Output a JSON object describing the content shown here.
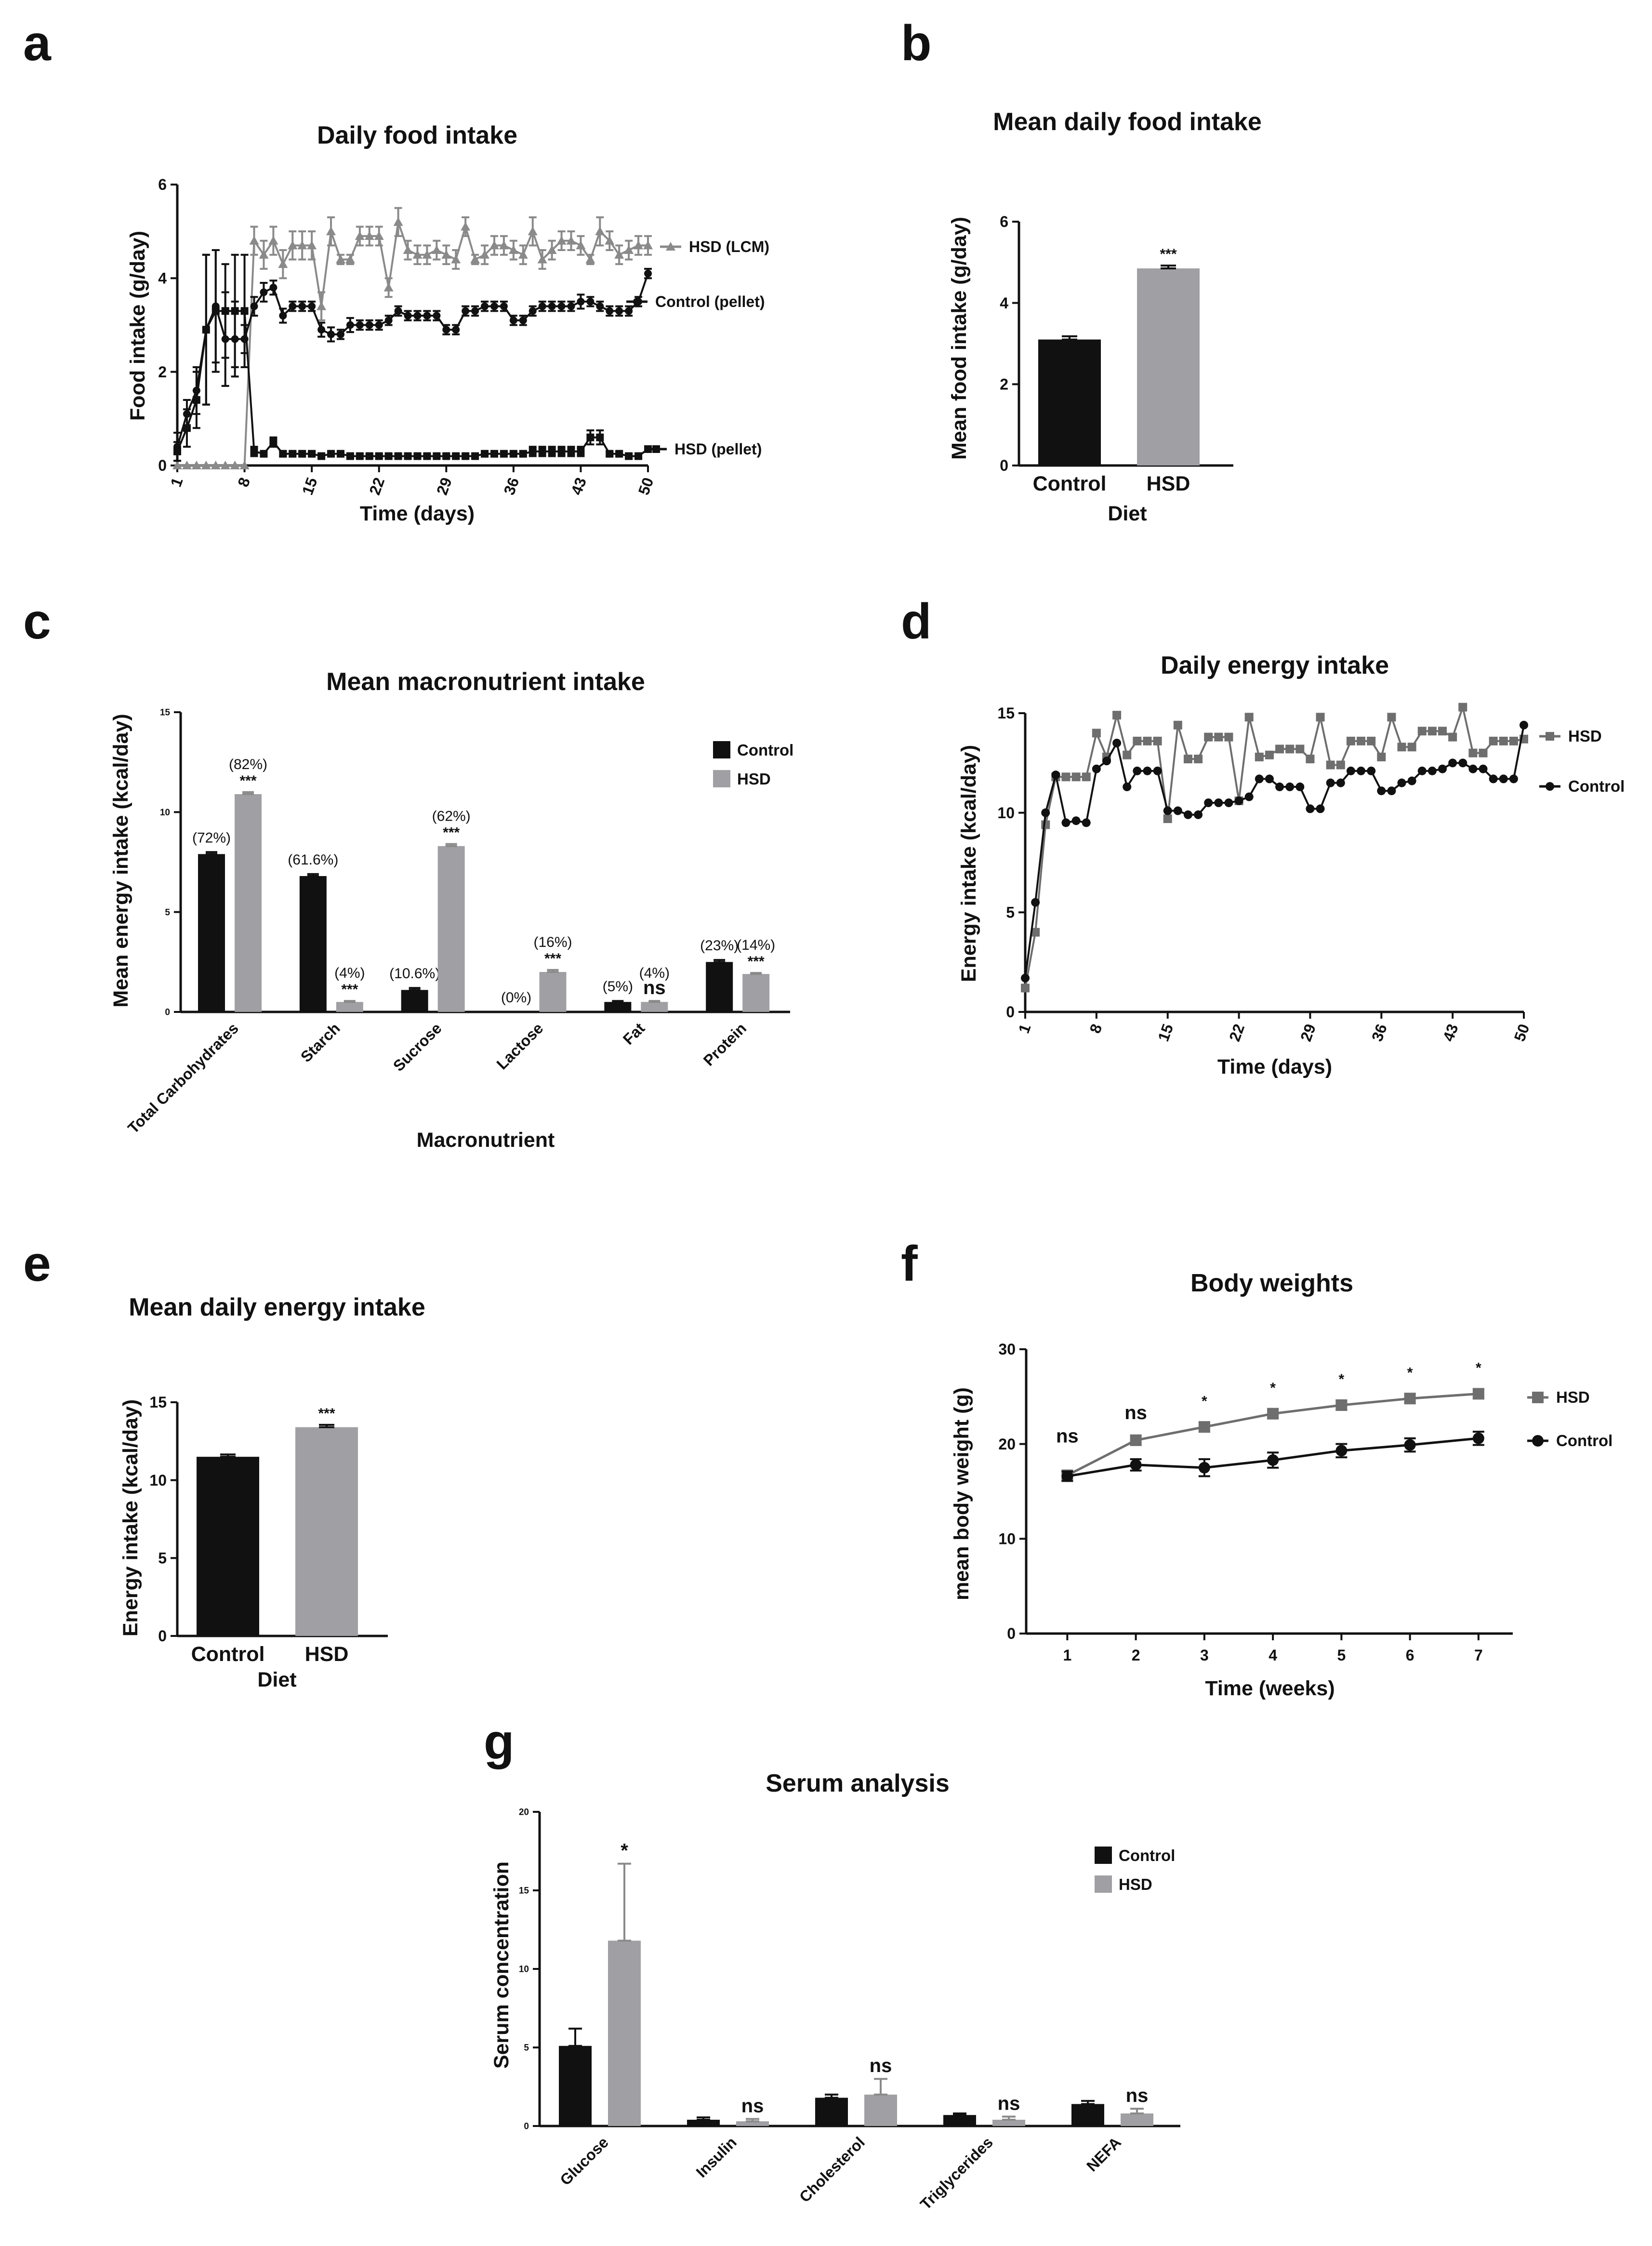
{
  "figure": {
    "panel_letters": [
      "a",
      "b",
      "c",
      "d",
      "e",
      "f",
      "g"
    ]
  },
  "colors": {
    "control": "#111111",
    "hsd_bar": "#a0a0a4",
    "hsd_line": "#6e6e6e",
    "hsd_lcm": "#8a8a8a"
  },
  "chart_data": [
    {
      "id": "a",
      "type": "line",
      "title": "Daily food intake",
      "xlabel": "Time (days)",
      "ylabel": "Food intake (g/day)",
      "xlim": [
        1,
        50
      ],
      "ylim": [
        0,
        6
      ],
      "xticks": [
        1,
        8,
        15,
        22,
        29,
        36,
        43,
        50
      ],
      "yticks": [
        0,
        2,
        4,
        6
      ],
      "x": [
        1,
        2,
        3,
        4,
        5,
        6,
        7,
        8,
        9,
        10,
        11,
        12,
        13,
        14,
        15,
        16,
        17,
        18,
        19,
        20,
        21,
        22,
        23,
        24,
        25,
        26,
        27,
        28,
        29,
        30,
        31,
        32,
        33,
        34,
        35,
        36,
        37,
        38,
        39,
        40,
        41,
        42,
        43,
        44,
        45,
        46,
        47,
        48,
        49,
        50
      ],
      "series": [
        {
          "name": "HSD (LCM)",
          "label": "HSD (LCM)",
          "marker": "triangle",
          "color": "#8a8a8a",
          "values": [
            0,
            0,
            0,
            0,
            0,
            0,
            0,
            0,
            4.8,
            4.5,
            4.8,
            4.3,
            4.7,
            4.7,
            4.7,
            3.4,
            5.0,
            4.4,
            4.4,
            4.9,
            4.9,
            4.9,
            3.8,
            5.2,
            4.6,
            4.5,
            4.5,
            4.6,
            4.5,
            4.4,
            5.1,
            4.4,
            4.5,
            4.7,
            4.7,
            4.6,
            4.5,
            5.0,
            4.4,
            4.6,
            4.8,
            4.8,
            4.7,
            4.4,
            5.0,
            4.8,
            4.5,
            4.6,
            4.7,
            4.7
          ],
          "err": [
            0,
            0,
            0,
            0,
            0,
            0,
            0,
            0,
            0.3,
            0.3,
            0.3,
            0.3,
            0.3,
            0.3,
            0.3,
            0.3,
            0.3,
            0.1,
            0.1,
            0.2,
            0.2,
            0.2,
            0.2,
            0.3,
            0.2,
            0.2,
            0.2,
            0.2,
            0.2,
            0.2,
            0.2,
            0.1,
            0.2,
            0.2,
            0.2,
            0.2,
            0.2,
            0.3,
            0.2,
            0.2,
            0.2,
            0.2,
            0.2,
            0.1,
            0.3,
            0.2,
            0.2,
            0.2,
            0.2,
            0.2
          ]
        },
        {
          "name": "Control (pellet)",
          "label": "Control (pellet)",
          "marker": "circle",
          "color": "#111111",
          "values": [
            0.4,
            1.1,
            1.6,
            2.9,
            3.4,
            2.7,
            2.7,
            2.7,
            3.4,
            3.7,
            3.8,
            3.2,
            3.4,
            3.4,
            3.4,
            2.9,
            2.8,
            2.8,
            3.0,
            3.0,
            3.0,
            3.0,
            3.1,
            3.3,
            3.2,
            3.2,
            3.2,
            3.2,
            2.9,
            2.9,
            3.3,
            3.3,
            3.4,
            3.4,
            3.4,
            3.1,
            3.1,
            3.3,
            3.4,
            3.4,
            3.4,
            3.4,
            3.5,
            3.5,
            3.4,
            3.3,
            3.3,
            3.3,
            3.5,
            4.1
          ],
          "err": [
            0.3,
            0.3,
            0.5,
            1.6,
            1.2,
            1.0,
            0.8,
            0.3,
            0.2,
            0.2,
            0.15,
            0.15,
            0.1,
            0.1,
            0.1,
            0.15,
            0.15,
            0.1,
            0.15,
            0.1,
            0.1,
            0.1,
            0.1,
            0.1,
            0.1,
            0.1,
            0.1,
            0.1,
            0.1,
            0.1,
            0.1,
            0.1,
            0.1,
            0.1,
            0.1,
            0.1,
            0.1,
            0.1,
            0.1,
            0.1,
            0.1,
            0.1,
            0.15,
            0.1,
            0.1,
            0.1,
            0.1,
            0.1,
            0.1,
            0.1
          ]
        },
        {
          "name": "HSD (pellet)",
          "label": "HSD (pellet)",
          "marker": "square",
          "color": "#111111",
          "values": [
            0.3,
            0.8,
            1.4,
            2.9,
            3.3,
            3.3,
            3.3,
            3.3,
            0.3,
            0.25,
            0.5,
            0.25,
            0.25,
            0.25,
            0.25,
            0.2,
            0.25,
            0.25,
            0.2,
            0.2,
            0.2,
            0.2,
            0.2,
            0.2,
            0.2,
            0.2,
            0.2,
            0.2,
            0.2,
            0.2,
            0.2,
            0.2,
            0.25,
            0.25,
            0.25,
            0.25,
            0.25,
            0.3,
            0.3,
            0.3,
            0.3,
            0.3,
            0.3,
            0.6,
            0.6,
            0.25,
            0.25,
            0.2,
            0.2,
            0.35
          ],
          "err": [
            0.2,
            0.4,
            0.6,
            1.6,
            1.3,
            1.0,
            1.2,
            1.2,
            0.1,
            0.05,
            0.1,
            0.05,
            0.05,
            0.05,
            0.05,
            0.05,
            0.05,
            0.05,
            0.05,
            0.05,
            0.05,
            0.05,
            0.05,
            0.05,
            0.05,
            0.05,
            0.05,
            0.05,
            0.05,
            0.05,
            0.05,
            0.05,
            0.05,
            0.05,
            0.05,
            0.05,
            0.05,
            0.1,
            0.1,
            0.1,
            0.1,
            0.1,
            0.1,
            0.15,
            0.15,
            0.05,
            0.05,
            0.05,
            0.05,
            0.05
          ]
        }
      ]
    },
    {
      "id": "b",
      "type": "bar",
      "title": "Mean daily food intake",
      "xlabel": "Diet",
      "ylabel": "Mean food intake (g/day)",
      "categories": [
        "Control",
        "HSD"
      ],
      "values": [
        3.1,
        4.85
      ],
      "err": [
        0.08,
        0.07
      ],
      "colors": [
        "#111111",
        "#a0a0a4"
      ],
      "significance": [
        "",
        "***"
      ],
      "ylim": [
        0,
        6
      ],
      "yticks": [
        0,
        2,
        4,
        6
      ]
    },
    {
      "id": "c",
      "type": "bar",
      "title": "Mean macronutrient intake",
      "xlabel": "Macronutrient",
      "ylabel": "Mean energy intake (kcal/day)",
      "categories": [
        "Total Carbohydrates",
        "Starch",
        "Sucrose",
        "Lactose",
        "Fat",
        "Protein"
      ],
      "series": [
        {
          "name": "Control",
          "color": "#111111",
          "values": [
            7.9,
            6.8,
            1.1,
            0.0,
            0.5,
            2.5
          ],
          "err": [
            0.1,
            0.1,
            0.1,
            0.0,
            0.05,
            0.1
          ],
          "pct": [
            "(72%)",
            "(61.6%)",
            "(10.6%)",
            "(0%)",
            "(5%)",
            "(23%)"
          ]
        },
        {
          "name": "HSD",
          "color": "#a0a0a4",
          "values": [
            10.9,
            0.5,
            8.3,
            2.0,
            0.5,
            1.9
          ],
          "err": [
            0.1,
            0.05,
            0.1,
            0.1,
            0.05,
            0.05
          ],
          "pct": [
            "(82%)",
            "(4%)",
            "(62%)",
            "(16%)",
            "(4%)",
            "(14%)"
          ]
        }
      ],
      "significance": [
        "***",
        "***",
        "***",
        "***",
        "ns",
        "***"
      ],
      "ylim": [
        0,
        15
      ],
      "yticks": [
        0,
        5,
        10,
        15
      ],
      "legend": "top-right"
    },
    {
      "id": "d",
      "type": "line",
      "title": "Daily energy intake",
      "xlabel": "Time (days)",
      "ylabel": "Energy intake (kcal/day)",
      "xlim": [
        1,
        50
      ],
      "ylim": [
        0,
        15
      ],
      "xticks": [
        1,
        8,
        15,
        22,
        29,
        36,
        43,
        50
      ],
      "yticks": [
        0,
        5,
        10,
        15
      ],
      "x": [
        1,
        2,
        3,
        4,
        5,
        6,
        7,
        8,
        9,
        10,
        11,
        12,
        13,
        14,
        15,
        16,
        17,
        18,
        19,
        20,
        21,
        22,
        23,
        24,
        25,
        26,
        27,
        28,
        29,
        30,
        31,
        32,
        33,
        34,
        35,
        36,
        37,
        38,
        39,
        40,
        41,
        42,
        43,
        44,
        45,
        46,
        47,
        48,
        49,
        50
      ],
      "series": [
        {
          "name": "HSD",
          "label": "HSD",
          "marker": "square",
          "color": "#6e6e6e",
          "values": [
            1.2,
            4.0,
            9.4,
            11.8,
            11.8,
            11.8,
            11.8,
            14.0,
            12.8,
            14.9,
            12.9,
            13.6,
            13.6,
            13.6,
            9.7,
            14.4,
            12.7,
            12.7,
            13.8,
            13.8,
            13.8,
            10.6,
            14.8,
            12.8,
            12.9,
            13.2,
            13.2,
            13.2,
            12.7,
            14.8,
            12.4,
            12.4,
            13.6,
            13.6,
            13.6,
            12.8,
            14.8,
            13.3,
            13.3,
            14.1,
            14.1,
            14.1,
            13.8,
            15.3,
            13.0,
            13.0,
            13.6,
            13.6,
            13.6,
            13.7
          ]
        },
        {
          "name": "Control",
          "label": "Control",
          "marker": "circle",
          "color": "#111111",
          "values": [
            1.7,
            5.5,
            10.0,
            11.9,
            9.5,
            9.6,
            9.5,
            12.2,
            12.6,
            13.5,
            11.3,
            12.1,
            12.1,
            12.1,
            10.1,
            10.1,
            9.9,
            9.9,
            10.5,
            10.5,
            10.5,
            10.6,
            10.8,
            11.7,
            11.7,
            11.3,
            11.3,
            11.3,
            10.2,
            10.2,
            11.5,
            11.5,
            12.1,
            12.1,
            12.1,
            11.1,
            11.1,
            11.5,
            11.6,
            12.1,
            12.1,
            12.2,
            12.5,
            12.5,
            12.2,
            12.2,
            11.7,
            11.7,
            11.7,
            14.4
          ]
        }
      ]
    },
    {
      "id": "e",
      "type": "bar",
      "title": "Mean daily energy intake",
      "xlabel": "Diet",
      "ylabel": "Energy intake (kcal/day)",
      "categories": [
        "Control",
        "HSD"
      ],
      "values": [
        11.5,
        13.4
      ],
      "err": [
        0.15,
        0.15
      ],
      "colors": [
        "#111111",
        "#a0a0a4"
      ],
      "significance": [
        "",
        "***"
      ],
      "ylim": [
        0,
        15
      ],
      "yticks": [
        0,
        5,
        10,
        15
      ]
    },
    {
      "id": "f",
      "type": "line",
      "title": "Body weights",
      "xlabel": "Time (weeks)",
      "ylabel": "mean body weight (g)",
      "x": [
        1,
        2,
        3,
        4,
        5,
        6,
        7
      ],
      "xticks": [
        1,
        2,
        3,
        4,
        5,
        6,
        7
      ],
      "xlim": [
        0.4,
        7.5
      ],
      "ylim": [
        0,
        30
      ],
      "yticks": [
        0,
        10,
        20,
        30
      ],
      "series": [
        {
          "name": "HSD",
          "label": "HSD",
          "marker": "square",
          "color": "#6e6e6e",
          "values": [
            16.7,
            20.4,
            21.8,
            23.2,
            24.1,
            24.8,
            25.3
          ],
          "err": [
            0.4,
            0.5,
            0.5,
            0.5,
            0.5,
            0.5,
            0.5
          ]
        },
        {
          "name": "Control",
          "label": "Control",
          "marker": "circle",
          "color": "#111111",
          "values": [
            16.6,
            17.8,
            17.5,
            18.3,
            19.3,
            19.9,
            20.6
          ],
          "err": [
            0.5,
            0.6,
            0.9,
            0.8,
            0.7,
            0.7,
            0.7
          ]
        }
      ],
      "significance": [
        "ns",
        "ns",
        "*",
        "*",
        "*",
        "*",
        "*"
      ]
    },
    {
      "id": "g",
      "type": "bar",
      "title": "Serum analysis",
      "xlabel": "",
      "ylabel": "Serum concentration",
      "categories": [
        "Glucose",
        "Insulin",
        "Cholesterol",
        "Triglycerides",
        "NEFA"
      ],
      "series": [
        {
          "name": "Control",
          "color": "#111111",
          "values": [
            5.1,
            0.4,
            1.8,
            0.7,
            1.4
          ],
          "err": [
            1.1,
            0.15,
            0.2,
            0.1,
            0.2
          ]
        },
        {
          "name": "HSD",
          "color": "#a0a0a4",
          "values": [
            11.8,
            0.3,
            2.0,
            0.4,
            0.8
          ],
          "err": [
            4.9,
            0.15,
            1.0,
            0.2,
            0.3
          ]
        }
      ],
      "significance": [
        "*",
        "ns",
        "ns",
        "ns",
        "ns"
      ],
      "ylim": [
        0,
        20
      ],
      "yticks": [
        0,
        5,
        10,
        15,
        20
      ],
      "legend": "top-right"
    }
  ]
}
